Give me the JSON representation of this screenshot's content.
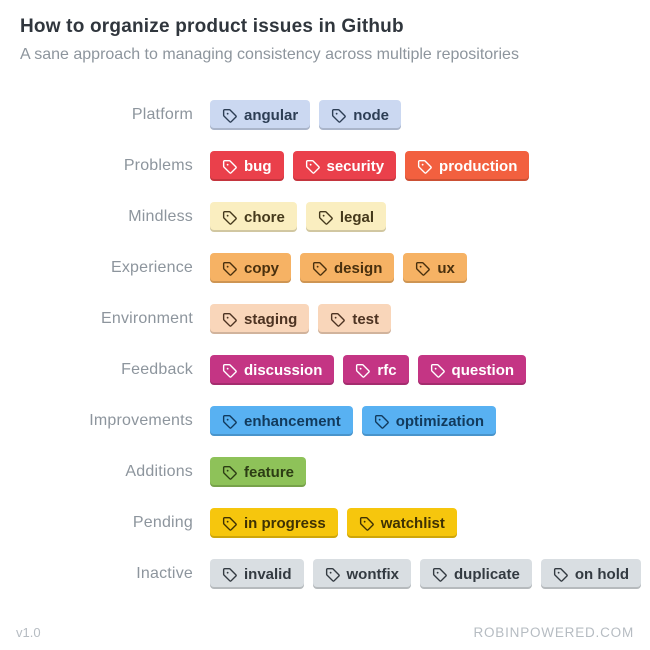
{
  "header": {
    "title": "How to organize product issues in Github",
    "subtitle": "A sane approach to managing consistency across multiple repositories"
  },
  "groups": [
    {
      "label": "Platform",
      "tags": [
        {
          "text": "angular",
          "bg": "#cbd8f1",
          "fg": "#2d3e55"
        },
        {
          "text": "node",
          "bg": "#cbd8f1",
          "fg": "#2d3e55"
        }
      ]
    },
    {
      "label": "Problems",
      "tags": [
        {
          "text": "bug",
          "bg": "#ea404b",
          "fg": "#ffffff"
        },
        {
          "text": "security",
          "bg": "#ea404b",
          "fg": "#ffffff"
        },
        {
          "text": "production",
          "bg": "#f2603f",
          "fg": "#ffffff"
        }
      ]
    },
    {
      "label": "Mindless",
      "tags": [
        {
          "text": "chore",
          "bg": "#faeec0",
          "fg": "#45391c"
        },
        {
          "text": "legal",
          "bg": "#faeec0",
          "fg": "#45391c"
        }
      ]
    },
    {
      "label": "Experience",
      "tags": [
        {
          "text": "copy",
          "bg": "#f6b264",
          "fg": "#49300e"
        },
        {
          "text": "design",
          "bg": "#f6b264",
          "fg": "#49300e"
        },
        {
          "text": "ux",
          "bg": "#f6b264",
          "fg": "#49300e"
        }
      ]
    },
    {
      "label": "Environment",
      "tags": [
        {
          "text": "staging",
          "bg": "#f9d6ba",
          "fg": "#4d3322"
        },
        {
          "text": "test",
          "bg": "#f9d6ba",
          "fg": "#4d3322"
        }
      ]
    },
    {
      "label": "Feedback",
      "tags": [
        {
          "text": "discussion",
          "bg": "#c43584",
          "fg": "#ffffff"
        },
        {
          "text": "rfc",
          "bg": "#c43584",
          "fg": "#ffffff"
        },
        {
          "text": "question",
          "bg": "#c43584",
          "fg": "#ffffff"
        }
      ]
    },
    {
      "label": "Improvements",
      "tags": [
        {
          "text": "enhancement",
          "bg": "#58b1f2",
          "fg": "#123a5c"
        },
        {
          "text": "optimization",
          "bg": "#58b1f2",
          "fg": "#123a5c"
        }
      ]
    },
    {
      "label": "Additions",
      "tags": [
        {
          "text": "feature",
          "bg": "#8ec259",
          "fg": "#2c3d14"
        }
      ]
    },
    {
      "label": "Pending",
      "tags": [
        {
          "text": "in progress",
          "bg": "#f6c60d",
          "fg": "#3e3104"
        },
        {
          "text": "watchlist",
          "bg": "#f6c60d",
          "fg": "#3e3104"
        }
      ]
    },
    {
      "label": "Inactive",
      "tags": [
        {
          "text": "invalid",
          "bg": "#d9dee2",
          "fg": "#333a41"
        },
        {
          "text": "wontfix",
          "bg": "#d9dee2",
          "fg": "#333a41"
        },
        {
          "text": "duplicate",
          "bg": "#d9dee2",
          "fg": "#333a41"
        },
        {
          "text": "on hold",
          "bg": "#d9dee2",
          "fg": "#333a41"
        }
      ]
    }
  ],
  "footer": {
    "version": "v1.0",
    "site": "ROBINPOWERED.COM"
  }
}
